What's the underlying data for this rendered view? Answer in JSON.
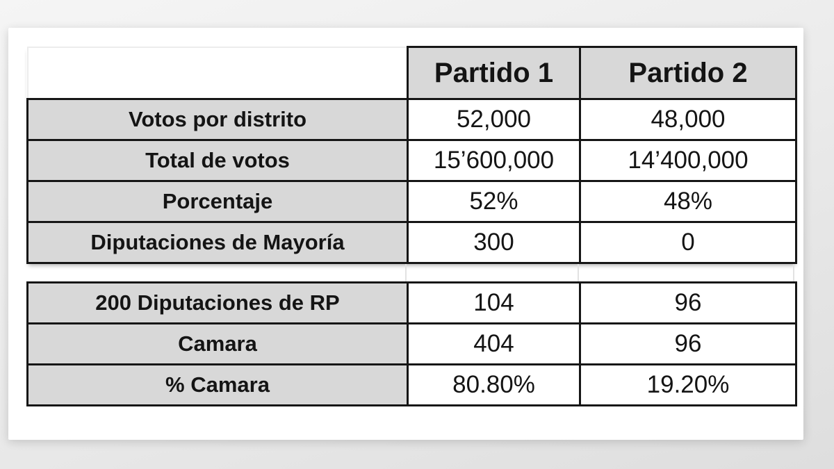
{
  "colors": {
    "page_bg_top": "#f5f5f5",
    "page_bg_bottom": "#dedede",
    "card_bg": "#ffffff",
    "cell_gray": "#d8d8d8",
    "border_black": "#161616",
    "text": "#141414"
  },
  "chart_data": {
    "type": "table",
    "title": "",
    "columns": [
      "",
      "Partido 1",
      "Partido 2"
    ],
    "legend": null,
    "sections": [
      {
        "rows": [
          {
            "cells": [
              "Votos por distrito",
              "52,000",
              "48,000"
            ]
          },
          {
            "cells": [
              "Total de votos",
              "15’600,000",
              "14’400,000"
            ]
          },
          {
            "cells": [
              "Porcentaje",
              "52%",
              "48%"
            ]
          },
          {
            "cells": [
              "Diputaciones de Mayoría",
              "300",
              "0"
            ]
          }
        ]
      },
      {
        "rows": [
          {
            "cells": [
              "200 Diputaciones de RP",
              "104",
              "96"
            ]
          },
          {
            "cells": [
              "Camara",
              "404",
              "96"
            ]
          },
          {
            "cells": [
              "% Camara",
              "80.80%",
              "19.20%"
            ]
          }
        ]
      }
    ]
  }
}
